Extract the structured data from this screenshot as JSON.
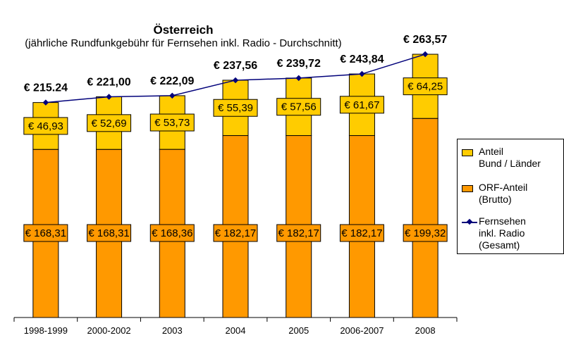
{
  "chart_data": {
    "type": "bar",
    "title": "Österreich",
    "subtitle": "(jährliche Rundfunkgebühr für Fernsehen inkl. Radio - Durchschnitt)",
    "categories": [
      "1998-1999",
      "2000-2002",
      "2003",
      "2004",
      "2005",
      "2006-2007",
      "2008"
    ],
    "stacked": true,
    "ylim": [
      0,
      280
    ],
    "grid": false,
    "legend_position": "right",
    "series": [
      {
        "name": "ORF-Anteil (Brutto)",
        "kind": "bar",
        "color": "#FF9900",
        "values": [
          168.31,
          168.31,
          168.36,
          182.17,
          182.17,
          182.17,
          199.32
        ],
        "labels": [
          "€ 168,31",
          "€ 168,31",
          "€ 168,36",
          "€ 182,17",
          "€ 182,17",
          "€ 182,17",
          "€ 199,32"
        ]
      },
      {
        "name": "Anteil Bund / Länder",
        "kind": "bar",
        "color": "#FFCC00",
        "values": [
          46.93,
          52.69,
          53.73,
          55.39,
          57.56,
          61.67,
          64.25
        ],
        "labels": [
          "€ 46,93",
          "€ 52,69",
          "€ 53,73",
          "€ 55,39",
          "€ 57,56",
          "€ 61,67",
          "€ 64,25"
        ]
      },
      {
        "name": "Fernsehen inkl. Radio (Gesamt)",
        "kind": "line",
        "color": "#00007A",
        "values": [
          215.24,
          221.0,
          222.09,
          237.56,
          239.72,
          243.84,
          263.57
        ],
        "labels": [
          "€ 215.24",
          "€ 221,00",
          "€ 222,09",
          "€ 237,56",
          "€ 239,72",
          "€ 243,84",
          "€ 263,57"
        ]
      }
    ],
    "legend": [
      "Anteil\nBund / Länder",
      "ORF-Anteil\n(Brutto)",
      "Fernsehen\ninkl. Radio\n(Gesamt)"
    ]
  }
}
